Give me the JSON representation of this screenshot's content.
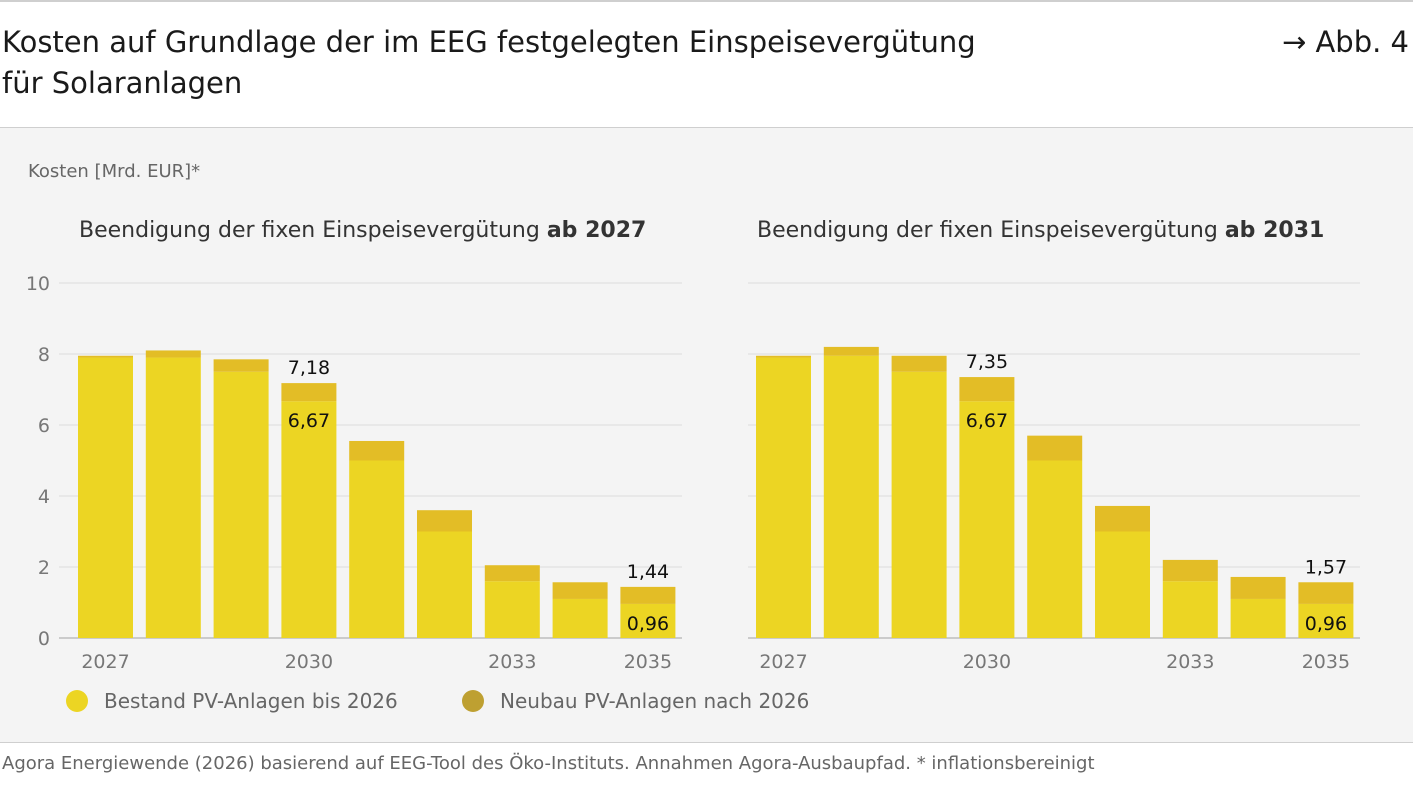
{
  "header": {
    "title_line1": "Kosten auf Grundlage der im EEG festgelegten Einspeisevergütung",
    "title_line2": "für Solaranlagen",
    "figure_ref": "→ Abb. 4"
  },
  "unit_label": "Kosten [Mrd. EUR]*",
  "colors": {
    "bestand": "#ecd523",
    "neubau": "#e3bd26",
    "neubau_legend": "#bea031",
    "grid": "#dcdcdc",
    "panel": "#f4f4f4"
  },
  "legend": [
    {
      "label": "Bestand PV-Anlagen bis 2026",
      "color": "#ecd523"
    },
    {
      "label": "Neubau PV-Anlagen nach 2026",
      "color": "#bea031"
    }
  ],
  "footer": {
    "source": "Agora Energiewende (2026) basierend auf EEG-Tool des Öko-Instituts. Annahmen Agora-Ausbaupfad. * inflationsbereinigt"
  },
  "chart_data": [
    {
      "type": "bar",
      "stacked": true,
      "title_prefix": "Beendigung der fixen Einspeisevergütung ",
      "title_bold": "ab 2027",
      "categories": [
        "2027",
        "2028",
        "2029",
        "2030",
        "2031",
        "2032",
        "2033",
        "2034",
        "2035"
      ],
      "x_tick_labels": [
        "2027",
        "",
        "",
        "2030",
        "",
        "",
        "2033",
        "",
        "2035"
      ],
      "y_ticks": [
        "0",
        "2",
        "4",
        "6",
        "8",
        "10"
      ],
      "ylim": [
        0,
        10
      ],
      "series": [
        {
          "name": "Bestand PV-Anlagen bis 2026",
          "values": [
            7.9,
            7.9,
            7.5,
            6.67,
            5.0,
            3.0,
            1.6,
            1.1,
            0.96
          ]
        },
        {
          "name": "Neubau PV-Anlagen nach 2026",
          "values": [
            0.05,
            0.2,
            0.35,
            0.51,
            0.55,
            0.6,
            0.45,
            0.47,
            0.48
          ]
        }
      ],
      "annotations": [
        {
          "category": "2030",
          "total": "7,18",
          "bestand": "6,67"
        },
        {
          "category": "2035",
          "total": "1,44",
          "bestand": "0,96"
        }
      ]
    },
    {
      "type": "bar",
      "stacked": true,
      "title_prefix": "Beendigung der fixen Einspeisevergütung ",
      "title_bold": "ab 2031",
      "categories": [
        "2027",
        "2028",
        "2029",
        "2030",
        "2031",
        "2032",
        "2033",
        "2034",
        "2035"
      ],
      "x_tick_labels": [
        "2027",
        "",
        "",
        "2030",
        "",
        "",
        "2033",
        "",
        "2035"
      ],
      "y_ticks": [
        "0",
        "2",
        "4",
        "6",
        "8",
        "10"
      ],
      "ylim": [
        0,
        10
      ],
      "series": [
        {
          "name": "Bestand PV-Anlagen bis 2026",
          "values": [
            7.9,
            7.95,
            7.5,
            6.67,
            5.0,
            3.0,
            1.6,
            1.1,
            0.96
          ]
        },
        {
          "name": "Neubau PV-Anlagen nach 2026",
          "values": [
            0.05,
            0.25,
            0.45,
            0.68,
            0.7,
            0.72,
            0.6,
            0.62,
            0.61
          ]
        }
      ],
      "annotations": [
        {
          "category": "2030",
          "total": "7,35",
          "bestand": "6,67"
        },
        {
          "category": "2035",
          "total": "1,57",
          "bestand": "0,96"
        }
      ]
    }
  ]
}
